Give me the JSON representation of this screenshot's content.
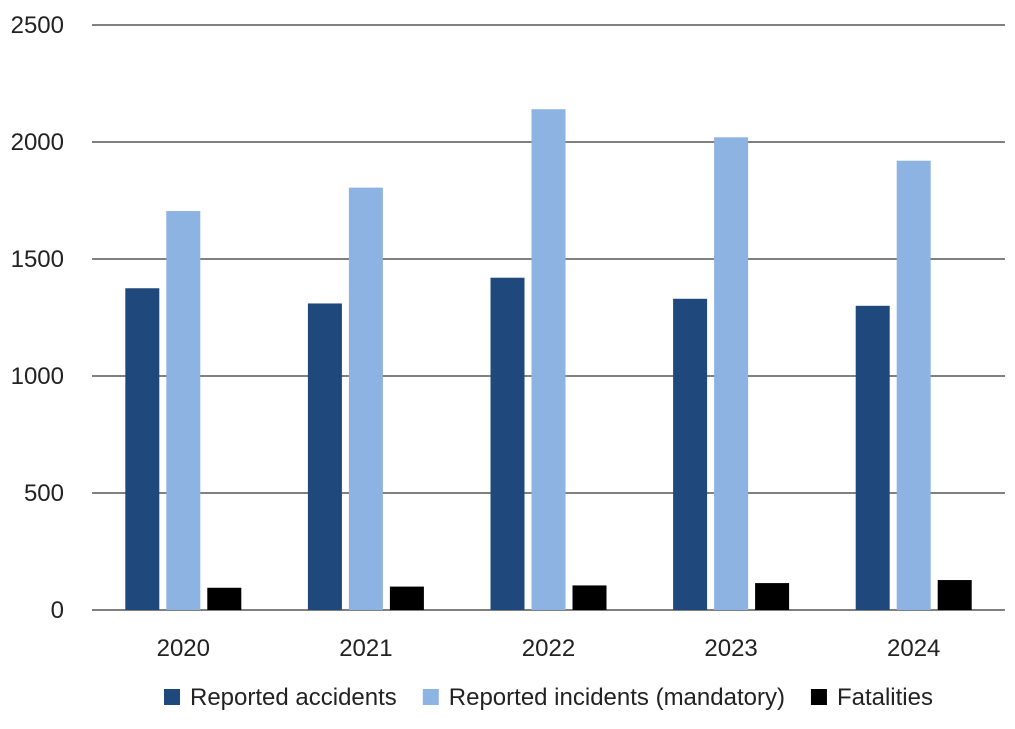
{
  "chart_data": {
    "type": "bar",
    "title": "",
    "xlabel": "",
    "ylabel": "",
    "categories": [
      "2020",
      "2021",
      "2022",
      "2023",
      "2024"
    ],
    "series": [
      {
        "name": "Reported accidents",
        "color": "#1f497d",
        "values": [
          1375,
          1310,
          1420,
          1330,
          1300
        ]
      },
      {
        "name": "Reported incidents (mandatory)",
        "color": "#8db3e2",
        "values": [
          1705,
          1805,
          2140,
          2020,
          1920
        ]
      },
      {
        "name": "Fatalities",
        "color": "#000000",
        "values": [
          95,
          100,
          105,
          115,
          128
        ]
      }
    ],
    "ylim": [
      0,
      2500
    ],
    "yticks": [
      0,
      500,
      1000,
      1500,
      2000,
      2500
    ],
    "grid": true,
    "legend_position": "bottom"
  }
}
